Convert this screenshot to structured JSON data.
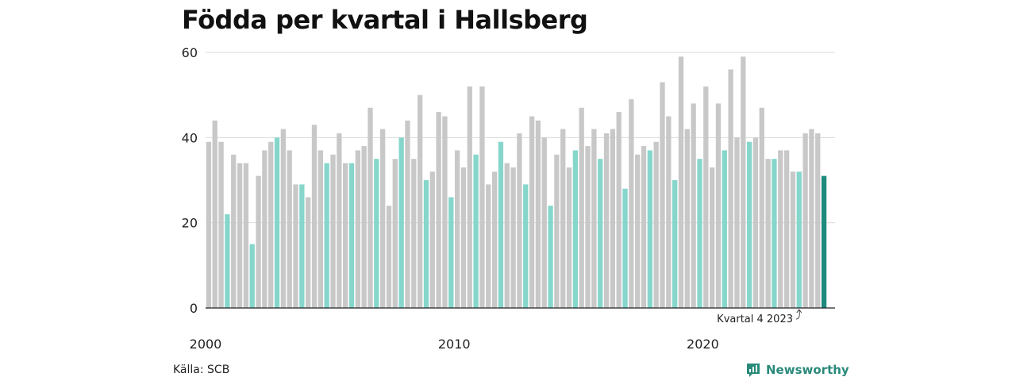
{
  "chart_data": {
    "type": "bar",
    "title": "Födda per kvartal i Hallsberg",
    "xlabel": "",
    "ylabel": "",
    "ylim": [
      0,
      60
    ],
    "y_ticks": [
      0,
      20,
      40,
      60
    ],
    "x_ticks": [
      {
        "label": "2000",
        "year": 2000
      },
      {
        "label": "2010",
        "year": 2010
      },
      {
        "label": "2020",
        "year": 2020
      }
    ],
    "grid": true,
    "start": {
      "year": 2000,
      "quarter": 1
    },
    "values": [
      39,
      44,
      39,
      22,
      36,
      34,
      34,
      15,
      31,
      37,
      39,
      40,
      42,
      37,
      29,
      29,
      26,
      43,
      37,
      34,
      36,
      41,
      34,
      34,
      37,
      38,
      47,
      35,
      42,
      24,
      35,
      40,
      44,
      35,
      50,
      30,
      32,
      46,
      45,
      26,
      37,
      33,
      52,
      36,
      52,
      29,
      32,
      39,
      34,
      33,
      41,
      29,
      45,
      44,
      40,
      24,
      36,
      42,
      33,
      37,
      47,
      38,
      42,
      35,
      41,
      42,
      46,
      28,
      49,
      36,
      38,
      37,
      39,
      53,
      45,
      30,
      59,
      42,
      48,
      35,
      52,
      33,
      48,
      37,
      56,
      40,
      59,
      39,
      40,
      47,
      35,
      35,
      37,
      37,
      32,
      32,
      41,
      42,
      41,
      31
    ],
    "highlight_quarter": 4,
    "colors": {
      "bar": "#c8c8c8",
      "highlight": "#86d6cb",
      "latest": "#1e8a7c",
      "grid": "#d9d9d9",
      "axis": "#222222"
    },
    "annotation": {
      "text": "Kvartal 4 2023"
    }
  },
  "footer": {
    "source": "Källa: SCB",
    "brand": "Newsworthy"
  }
}
